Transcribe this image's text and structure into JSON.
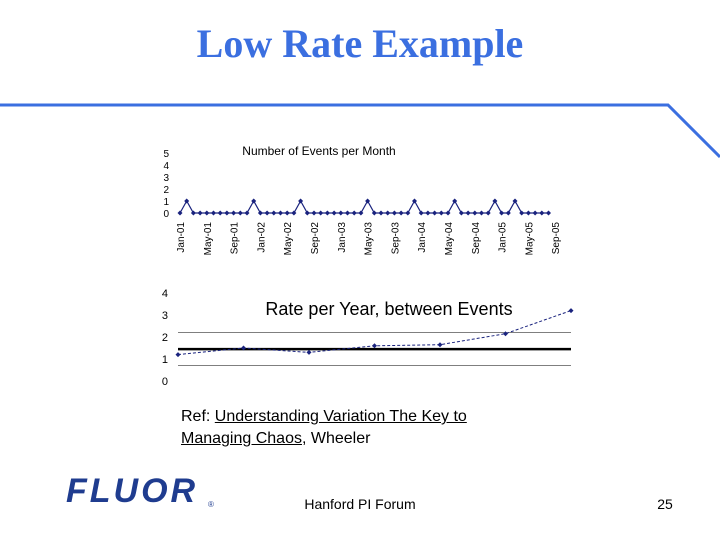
{
  "slide": {
    "title": "Low Rate Example",
    "ref_prefix": "Ref:  ",
    "ref_link": "Understanding Variation The Key to Managing Chaos",
    "ref_suffix": ", Wheeler",
    "logo_text": "FLUOR",
    "logo_reg": "®",
    "footer_center": "Hanford PI Forum",
    "page_number": "25",
    "colors": {
      "title": "#3b6fe0",
      "rule": "#3b6fe0",
      "series": "#1a237e",
      "logo": "#1f3c8f"
    }
  },
  "chart_data": [
    {
      "type": "line",
      "title": "Number of Events per Month",
      "xlabel": "",
      "ylabel": "",
      "ylim": [
        0,
        5
      ],
      "yticks": [
        0,
        1,
        2,
        3,
        4,
        5
      ],
      "x_tick_labels": [
        "Jan-01",
        "May-01",
        "Sep-01",
        "Jan-02",
        "May-02",
        "Sep-02",
        "Jan-03",
        "May-03",
        "Sep-03",
        "Jan-04",
        "May-04",
        "Sep-04",
        "Jan-05",
        "May-05",
        "Sep-05"
      ],
      "series": [
        {
          "values": [
            0,
            1,
            0,
            0,
            0,
            0,
            0,
            0,
            0,
            0,
            0,
            1,
            0,
            0,
            0,
            0,
            0,
            0,
            1,
            0,
            0,
            0,
            0,
            0,
            0,
            0,
            0,
            0,
            1,
            0,
            0,
            0,
            0,
            0,
            0,
            1,
            0,
            0,
            0,
            0,
            0,
            1,
            0,
            0,
            0,
            0,
            0,
            1,
            0,
            0,
            1,
            0,
            0,
            0,
            0,
            0
          ]
        }
      ],
      "grid": false,
      "legend": "none"
    },
    {
      "type": "line",
      "title": "Rate per Year, between Events",
      "xlabel": "",
      "ylabel": "",
      "ylim": [
        0,
        4
      ],
      "yticks": [
        0,
        1,
        2,
        3,
        4
      ],
      "series": [
        {
          "x": [
            0,
            5,
            10,
            15,
            20,
            25,
            30
          ],
          "values": [
            1.2,
            1.5,
            1.3,
            1.6,
            1.65,
            2.15,
            3.2
          ]
        }
      ],
      "reference_lines": {
        "center": 1.45,
        "upper": 2.2,
        "lower": 0.7
      },
      "grid": false,
      "legend": "none"
    }
  ]
}
